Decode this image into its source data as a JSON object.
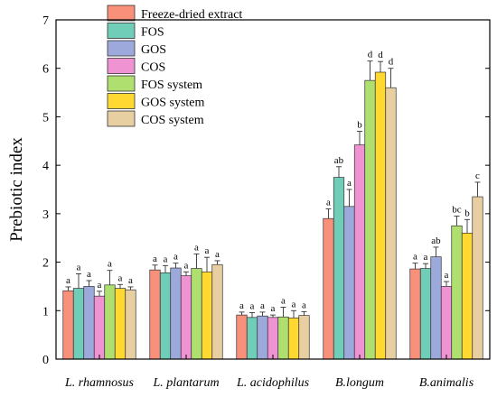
{
  "chart_data": {
    "type": "bar",
    "title": "",
    "xlabel": "",
    "ylabel": "Prebiotic index",
    "ylim": [
      0,
      7
    ],
    "yticks": [
      0,
      1,
      2,
      3,
      4,
      5,
      6,
      7
    ],
    "grid": false,
    "legend_position": "top-left",
    "categories": [
      "L. rhamnosus",
      "L. plantarum",
      "L. acidophilus",
      "B.longum",
      "B.animalis"
    ],
    "series": [
      {
        "name": "Freeze-dried extract",
        "color": "#F8907A",
        "values": [
          1.41,
          1.84,
          0.91,
          2.9,
          1.86
        ],
        "errors": [
          0.08,
          0.1,
          0.06,
          0.2,
          0.12
        ],
        "labels": [
          "a",
          "a",
          "a",
          "a",
          "a"
        ]
      },
      {
        "name": "FOS",
        "color": "#6FCDB8",
        "values": [
          1.46,
          1.78,
          0.86,
          3.75,
          1.87
        ],
        "errors": [
          0.3,
          0.15,
          0.1,
          0.22,
          0.1
        ],
        "labels": [
          "a",
          "a",
          "a",
          "ab",
          "a"
        ]
      },
      {
        "name": "GOS",
        "color": "#9DA9DB",
        "values": [
          1.5,
          1.88,
          0.89,
          3.15,
          2.11
        ],
        "errors": [
          0.12,
          0.1,
          0.08,
          0.35,
          0.2
        ],
        "labels": [
          "a",
          "a",
          "a",
          "a",
          "ab"
        ]
      },
      {
        "name": "COS",
        "color": "#EF93D2",
        "values": [
          1.3,
          1.72,
          0.86,
          4.42,
          1.5
        ],
        "errors": [
          0.1,
          0.08,
          0.05,
          0.28,
          0.1
        ],
        "labels": [
          "a",
          "a",
          "a",
          "b",
          "a"
        ]
      },
      {
        "name": "FOS system",
        "color": "#AEDF6F",
        "values": [
          1.53,
          1.87,
          0.87,
          5.75,
          2.75
        ],
        "errors": [
          0.3,
          0.3,
          0.2,
          0.4,
          0.2
        ],
        "labels": [
          "a",
          "a",
          "a",
          "d",
          "bc"
        ]
      },
      {
        "name": "GOS system",
        "color": "#FFD931",
        "values": [
          1.46,
          1.8,
          0.85,
          5.92,
          2.6
        ],
        "errors": [
          0.08,
          0.3,
          0.15,
          0.22,
          0.28
        ],
        "labels": [
          "a",
          "a",
          "a",
          "d",
          "b"
        ]
      },
      {
        "name": "COS system",
        "color": "#E8CFA2",
        "values": [
          1.43,
          1.95,
          0.9,
          5.6,
          3.35
        ],
        "errors": [
          0.06,
          0.08,
          0.08,
          0.4,
          0.3
        ],
        "labels": [
          "a",
          "a",
          "a",
          "d",
          "c"
        ]
      }
    ]
  }
}
